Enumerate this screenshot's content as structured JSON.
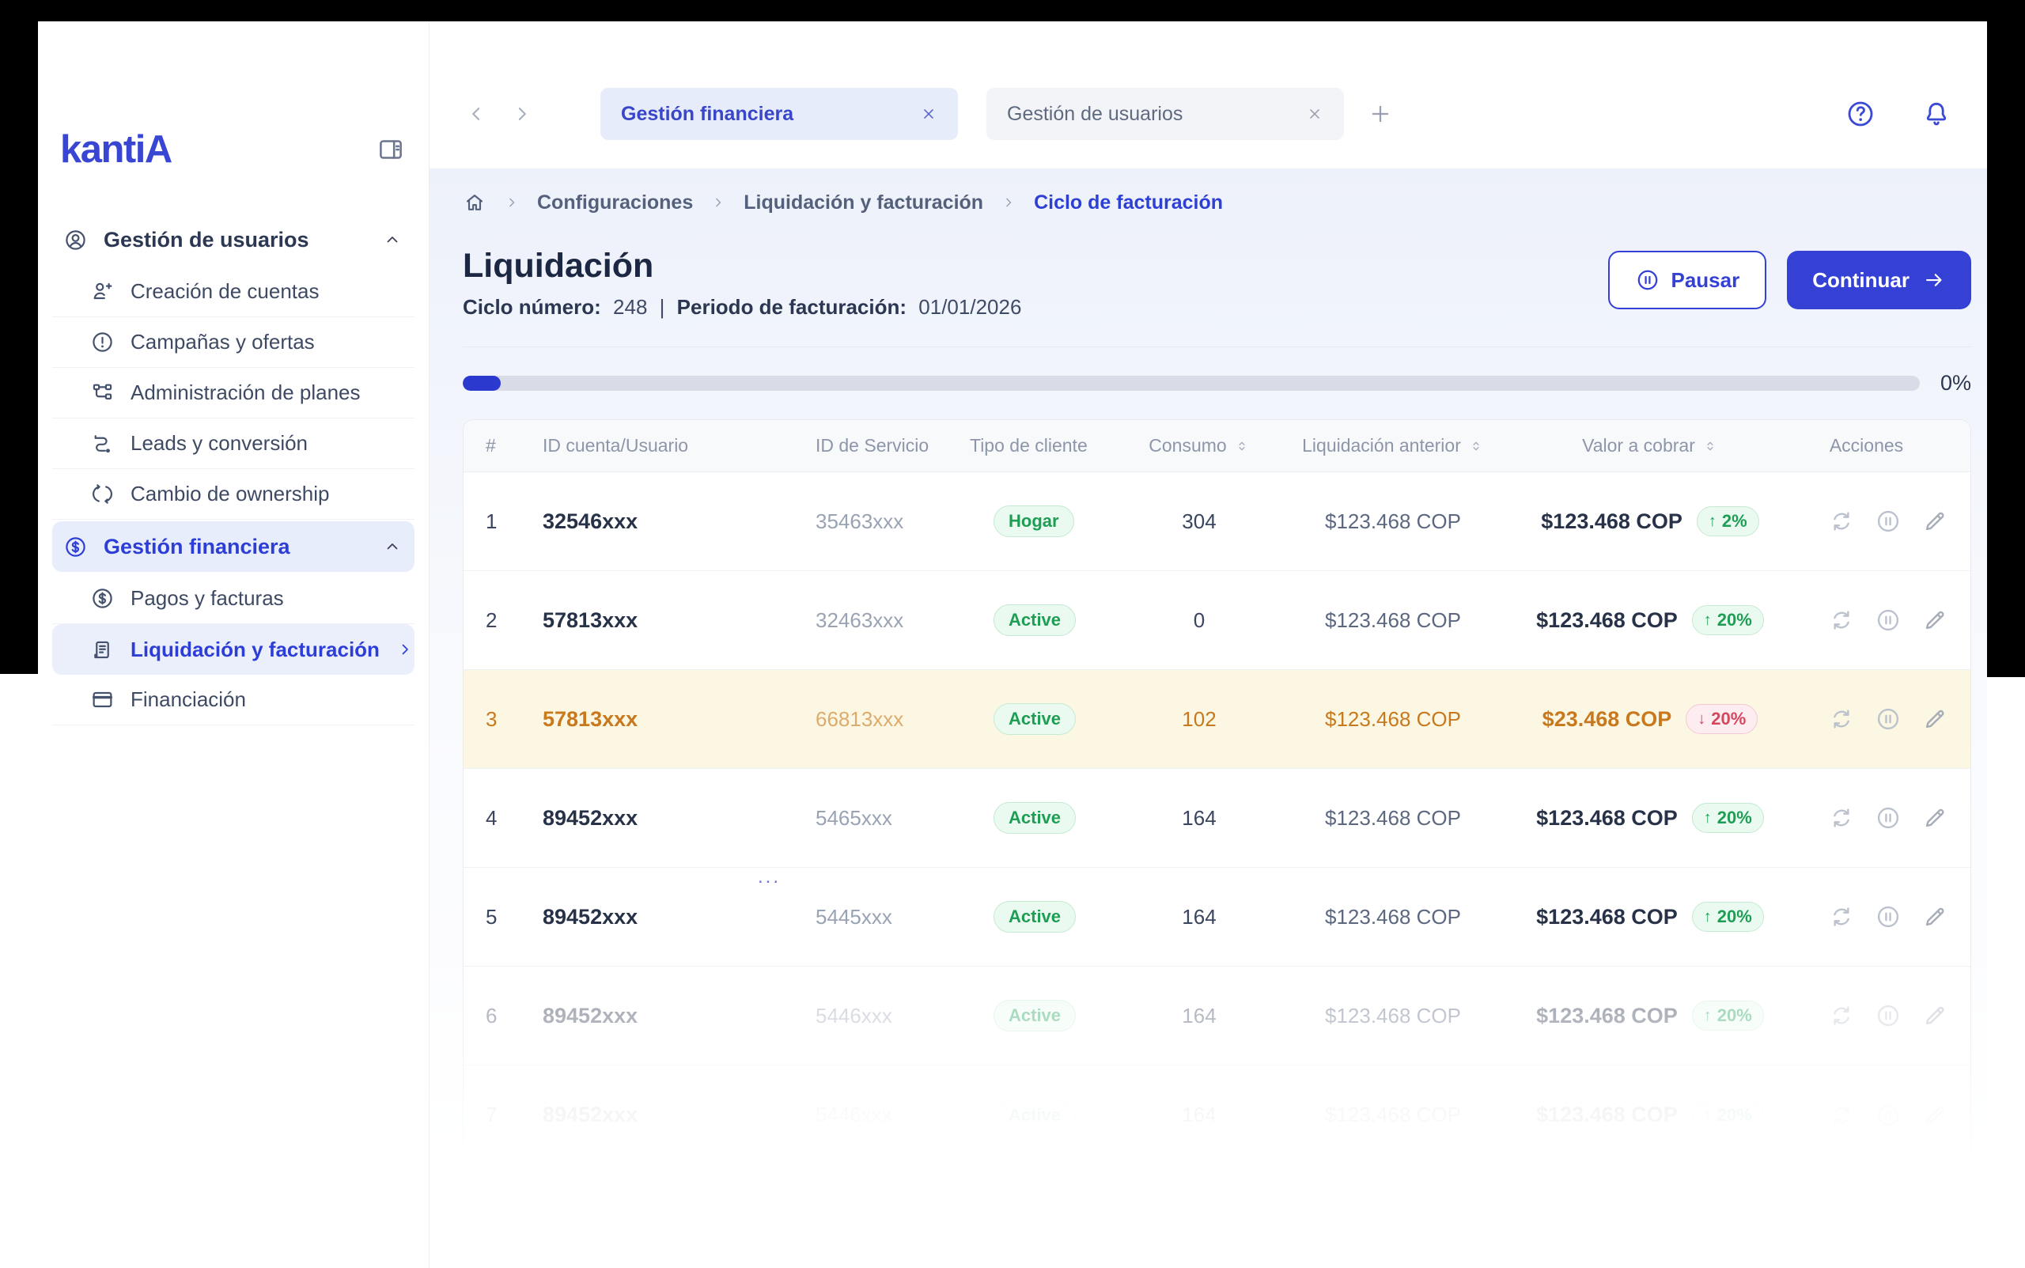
{
  "colors": {
    "primary": "#3541d4",
    "logo_blue": "#3946d3",
    "active_nav": "#2d3ed6",
    "success": "#1e9e55",
    "danger": "#d5465f",
    "warning_row_text": "#c8791e",
    "warning_row_bg": "#fcf7e3"
  },
  "sidebar": {
    "logo": "kantiA",
    "collapse_icon": "panel-collapse",
    "items": [
      {
        "id": "gestion-de-usuarios",
        "label": "Gestión de usuarios",
        "icon": "user-circle",
        "kind": "group",
        "trailing": "chevron-up"
      },
      {
        "id": "creacion-de-cuentas",
        "label": "Creación de cuentas",
        "icon": "user-plus",
        "kind": "item"
      },
      {
        "id": "campanas-y-ofertas",
        "label": "Campañas y ofertas",
        "icon": "alert-circle",
        "kind": "item"
      },
      {
        "id": "administracion-de-planes",
        "label": "Administración de planes",
        "icon": "plans",
        "kind": "item"
      },
      {
        "id": "leads-y-conversion",
        "label": "Leads y conversión",
        "icon": "route",
        "kind": "item"
      },
      {
        "id": "cambio-de-ownership",
        "label": "Cambio de ownership",
        "icon": "swap",
        "kind": "item"
      },
      {
        "id": "gestion-financiera",
        "label": "Gestión financiera",
        "icon": "dollar-circle",
        "kind": "group",
        "active": true,
        "trailing": "chevron-up"
      },
      {
        "id": "pagos-y-facturas",
        "label": "Pagos y facturas",
        "icon": "dollar-circle",
        "kind": "item"
      },
      {
        "id": "liquidacion-y-facturacion",
        "label": "Liquidación y facturación",
        "icon": "receipt",
        "kind": "item",
        "active": true,
        "trailing": "chevron-right"
      },
      {
        "id": "financiacion",
        "label": "Financiación",
        "icon": "credit-card",
        "kind": "item"
      }
    ]
  },
  "tabs": [
    {
      "label": "Gestión financiera",
      "active": true
    },
    {
      "label": "Gestión de usuarios",
      "active": false
    }
  ],
  "breadcrumb": {
    "home_icon": "home",
    "items": [
      {
        "label": "Configuraciones"
      },
      {
        "label": "Liquidación y facturación"
      },
      {
        "label": "Ciclo de facturación",
        "current": true
      }
    ]
  },
  "header": {
    "title": "Liquidación",
    "subtitle": {
      "cycle_label": "Ciclo número:",
      "cycle_value": "248",
      "separator": "|",
      "period_label": "Periodo de facturación:",
      "period_value": "01/01/2026"
    },
    "pause_label": "Pausar",
    "continue_label": "Continuar"
  },
  "progress": {
    "label": "0%",
    "fill_percent": 2.6
  },
  "table": {
    "columns": [
      {
        "label": "#",
        "sortable": false
      },
      {
        "label": "ID cuenta/Usuario",
        "sortable": false
      },
      {
        "label": "ID de Servicio",
        "sortable": false
      },
      {
        "label": "Tipo de cliente",
        "sortable": false
      },
      {
        "label": "Consumo",
        "sortable": true
      },
      {
        "label": "Liquidación anterior",
        "sortable": true
      },
      {
        "label": "Valor a cobrar",
        "sortable": true
      },
      {
        "label": "Acciones",
        "sortable": false
      }
    ],
    "actions": [
      {
        "id": "refresh",
        "icon": "refresh"
      },
      {
        "id": "pause",
        "icon": "pause-circle"
      },
      {
        "id": "edit",
        "icon": "pencil"
      }
    ],
    "rows": [
      {
        "num": "1",
        "account": "32546xxx",
        "service": "35463xxx",
        "client_type": "Hogar",
        "consumption": "304",
        "previous": "$123.468 COP",
        "amount": "$123.468 COP",
        "change": "2%",
        "change_dir": "up",
        "state": "default"
      },
      {
        "num": "2",
        "account": "57813xxx",
        "service": "32463xxx",
        "client_type": "Active",
        "consumption": "0",
        "previous": "$123.468 COP",
        "amount": "$123.468 COP",
        "change": "20%",
        "change_dir": "up",
        "state": "default"
      },
      {
        "num": "3",
        "account": "57813xxx",
        "service": "66813xxx",
        "client_type": "Active",
        "consumption": "102",
        "previous": "$123.468 COP",
        "amount": "$23.468 COP",
        "change": "20%",
        "change_dir": "down",
        "state": "warning"
      },
      {
        "num": "4",
        "account": "89452xxx",
        "service": "5465xxx",
        "client_type": "Active",
        "consumption": "164",
        "previous": "$123.468 COP",
        "amount": "$123.468 COP",
        "change": "20%",
        "change_dir": "up",
        "state": "default",
        "note": "..."
      },
      {
        "num": "5",
        "account": "89452xxx",
        "service": "5445xxx",
        "client_type": "Active",
        "consumption": "164",
        "previous": "$123.468 COP",
        "amount": "$123.468 COP",
        "change": "20%",
        "change_dir": "up",
        "state": "default"
      },
      {
        "num": "6",
        "account": "89452xxx",
        "service": "5446xxx",
        "client_type": "Active",
        "consumption": "164",
        "previous": "$123.468 COP",
        "amount": "$123.468 COP",
        "change": "20%",
        "change_dir": "up",
        "state": "faded"
      },
      {
        "num": "7",
        "account": "89452xxx",
        "service": "5446xxx",
        "client_type": "Active",
        "consumption": "164",
        "previous": "$123.468 COP",
        "amount": "$123.468 COP",
        "change": "20%",
        "change_dir": "up",
        "state": "ghost"
      }
    ]
  }
}
